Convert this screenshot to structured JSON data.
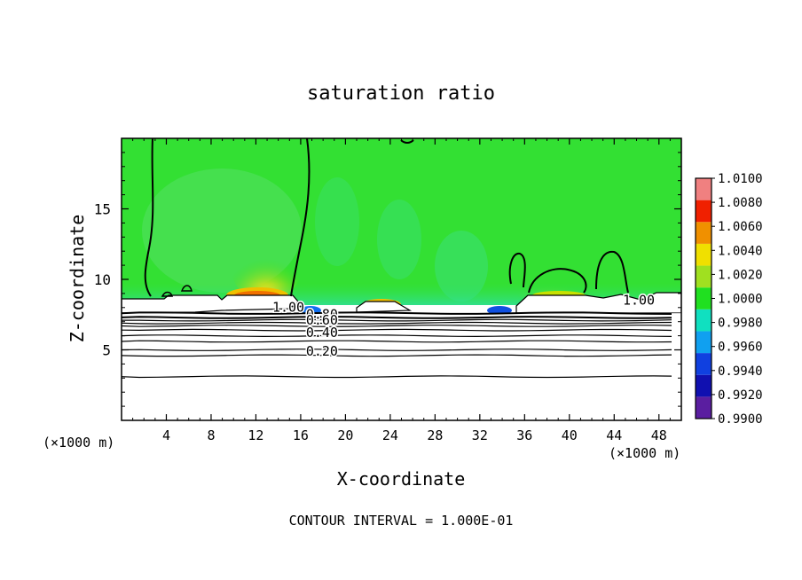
{
  "chart_data": {
    "type": "heatmap",
    "title": "saturation ratio",
    "xlabel": "X-coordinate",
    "ylabel": "Z-coordinate",
    "x_unit_left": "(×1000 m)",
    "x_unit_right": "(×1000 m)",
    "xlim": [
      0,
      50
    ],
    "ylim": [
      0,
      20
    ],
    "x_ticks": [
      4,
      8,
      12,
      16,
      20,
      24,
      28,
      32,
      36,
      40,
      44,
      48
    ],
    "x_tick_labels": [
      "4",
      "8",
      "12",
      "16",
      "20",
      "24",
      "28",
      "32",
      "36",
      "40",
      "44",
      "48"
    ],
    "y_ticks": [
      5,
      10,
      15
    ],
    "y_tick_labels": [
      "5",
      "10",
      "15"
    ],
    "footer": "CONTOUR INTERVAL = 1.000E-01",
    "colorbar": {
      "levels": [
        0.99,
        0.992,
        0.994,
        0.996,
        0.998,
        1.0,
        1.002,
        1.004,
        1.006,
        1.008,
        1.01
      ],
      "labels": [
        "0.9900",
        "0.9920",
        "0.9940",
        "0.9960",
        "0.9980",
        "1.0000",
        "1.0020",
        "1.0040",
        "1.0060",
        "1.0080",
        "1.0100"
      ],
      "colors": [
        "#5a1ea0",
        "#1010b0",
        "#1040e0",
        "#10a0f0",
        "#10e0c0",
        "#20e020",
        "#a0e020",
        "#f0e000",
        "#f09000",
        "#f02000",
        "#f08080"
      ]
    },
    "contour_labels": [
      {
        "text": "1.00",
        "x": 14.9,
        "z": 7.7
      },
      {
        "text": "0.80",
        "x": 17.9,
        "z": 7.2
      },
      {
        "text": "0.60",
        "x": 17.9,
        "z": 6.8
      },
      {
        "text": "0.40",
        "x": 17.9,
        "z": 5.9
      },
      {
        "text": "0.20",
        "x": 17.9,
        "z": 4.6
      },
      {
        "text": "1.00",
        "x": 46.2,
        "z": 8.2
      }
    ],
    "contour_lines_z": [
      7.6,
      7.3,
      7.1,
      6.9,
      6.7,
      6.4,
      6.0,
      5.6,
      5.0,
      4.6,
      3.1
    ]
  }
}
